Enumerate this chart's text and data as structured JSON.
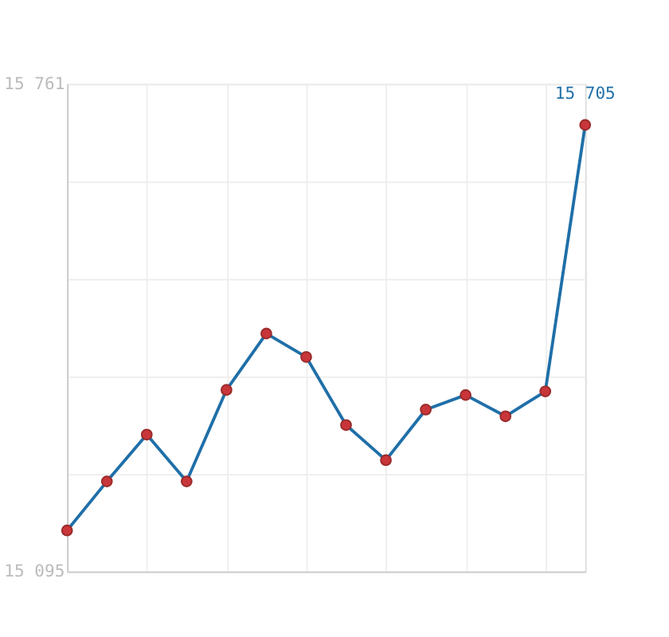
{
  "chart_data": {
    "type": "line",
    "categories": [
      null,
      null,
      null,
      null,
      null,
      null,
      null,
      null,
      null,
      null,
      null,
      null,
      null,
      null
    ],
    "series": [
      {
        "color": "#1f6fa8",
        "values": [
          15151,
          15218,
          15282,
          15218,
          15343,
          15420,
          15388,
          15295,
          15247,
          15316,
          15336,
          15307,
          15341,
          15705
        ],
        "value_labels": [
          null,
          null,
          null,
          null,
          null,
          null,
          null,
          null,
          null,
          null,
          null,
          null,
          null,
          "15 705"
        ]
      }
    ],
    "marker": "circle",
    "ylim": [
      15095,
      15761
    ],
    "yticks": [
      {
        "value": 15095,
        "label": "15 095"
      },
      {
        "value": 15228.2,
        "label": null
      },
      {
        "value": 15361.4,
        "label": null
      },
      {
        "value": 15494.6,
        "label": null
      },
      {
        "value": 15627.8,
        "label": null
      },
      {
        "value": 15761,
        "label": "15 761"
      }
    ],
    "grid": true,
    "tick_labels": "y"
  }
}
